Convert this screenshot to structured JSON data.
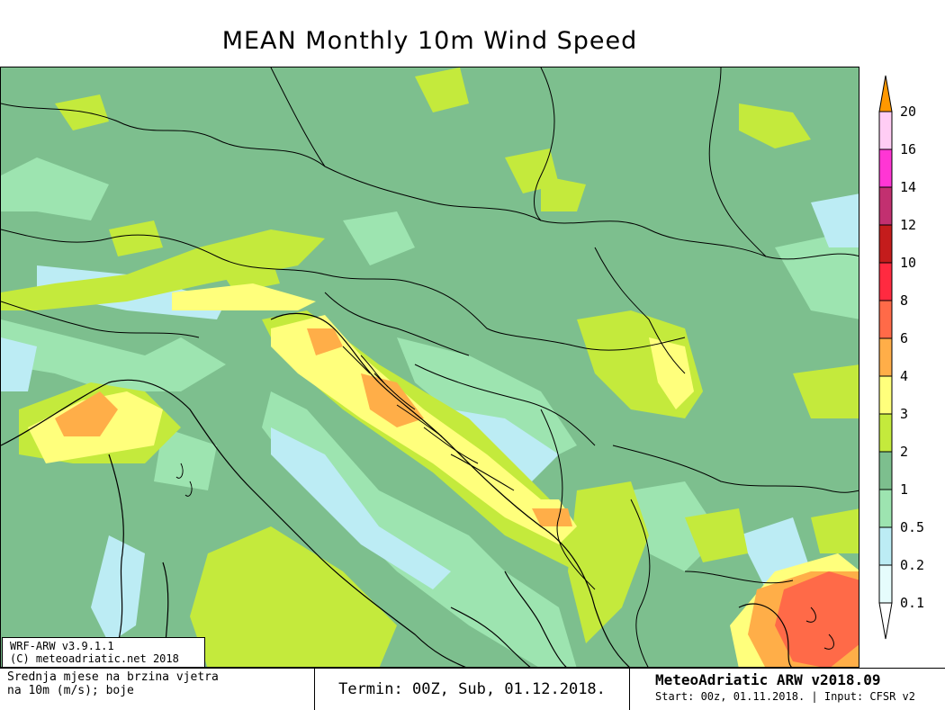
{
  "title": "MEAN Monthly 10m Wind Speed",
  "model_info": {
    "line1": "WRF-ARW v3.9.1.1",
    "line2": "(C) meteoadriatic.net 2018"
  },
  "description": {
    "line1": "Srednja mjese  na brzina vjetra",
    "line2": "na 10m (m/s); boje"
  },
  "run_time": "Termin: 00Z, Sub, 01.12.2018.",
  "brand": {
    "name": "MeteoAdriatic ARW v2018.09",
    "start": "Start: 00z, 01.11.2018. | Input: CFSR v2"
  },
  "colorbar": {
    "labels": [
      "20",
      "16",
      "14",
      "12",
      "10",
      "8",
      "6",
      "4",
      "3",
      "2",
      "1",
      "0.5",
      "0.2",
      "0.1"
    ],
    "colors": [
      "#ffcdf4",
      "#ff36d4",
      "#c23070",
      "#c41c1c",
      "#ff2a40",
      "#ff6a48",
      "#ffae48",
      "#ffff7c",
      "#c4ea3c",
      "#7dbf8e",
      "#9de4b0",
      "#bcecf4",
      "#e6fcfc"
    ],
    "overflow_color": "#ff9800",
    "underflow_color": "#ffffff"
  }
}
